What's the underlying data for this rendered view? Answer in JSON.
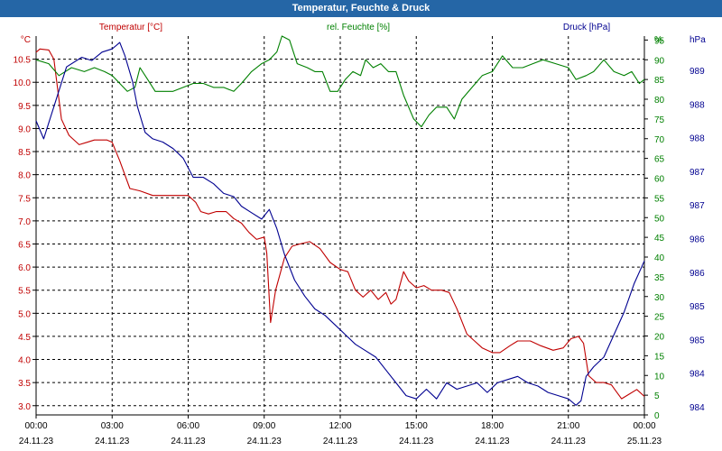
{
  "window": {
    "title": "Temperatur, Feuchte & Druck"
  },
  "colors": {
    "temperature": "#c00000",
    "humidity": "#008000",
    "pressure": "#000090",
    "grid": "#000000",
    "titlebar": "#2566a6"
  },
  "chart_data": {
    "type": "line",
    "title": "Temperatur, Feuchte & Druck",
    "legend_placement": "top",
    "grid": true,
    "grid_style": "dashed",
    "x_ticks": [
      {
        "time": "00:00",
        "date": "24.11.23",
        "h": 0
      },
      {
        "time": "03:00",
        "date": "24.11.23",
        "h": 3
      },
      {
        "time": "06:00",
        "date": "24.11.23",
        "h": 6
      },
      {
        "time": "09:00",
        "date": "24.11.23",
        "h": 9
      },
      {
        "time": "12:00",
        "date": "24.11.23",
        "h": 12
      },
      {
        "time": "15:00",
        "date": "24.11.23",
        "h": 15
      },
      {
        "time": "18:00",
        "date": "24.11.23",
        "h": 18
      },
      {
        "time": "21:00",
        "date": "24.11.23",
        "h": 21
      },
      {
        "time": "00:00",
        "date": "25.11.23",
        "h": 24
      }
    ],
    "axes": {
      "temperature": {
        "unit": "°C",
        "title": "Temperatur [°C]",
        "range": [
          2.8,
          11.0
        ],
        "ticks": [
          "3.0",
          "3.5",
          "4.0",
          "4.5",
          "5.0",
          "5.5",
          "6.0",
          "6.5",
          "7.0",
          "7.5",
          "8.0",
          "8.5",
          "9.0",
          "9.5",
          "10.0",
          "10.5"
        ]
      },
      "humidity": {
        "unit": "%",
        "title": "rel. Feuchte [%]",
        "range": [
          0,
          96
        ],
        "ticks": [
          "0",
          "5",
          "10",
          "15",
          "20",
          "25",
          "30",
          "35",
          "40",
          "45",
          "50",
          "55",
          "60",
          "65",
          "70",
          "75",
          "80",
          "85",
          "90",
          "95"
        ]
      },
      "pressure": {
        "unit": "hPa",
        "title": "Druck [hPa]",
        "range": [
          983.7,
          989.6
        ],
        "ticks": [
          "984",
          "984",
          "985",
          "985",
          "986",
          "986",
          "987",
          "987",
          "988",
          "988",
          "989"
        ]
      }
    },
    "series": [
      {
        "name": "Temperatur [°C]",
        "axis": "temperature",
        "color": "#c00000",
        "points": [
          [
            0,
            10.65
          ],
          [
            0.15,
            10.72
          ],
          [
            0.5,
            10.7
          ],
          [
            0.7,
            10.5
          ],
          [
            1.0,
            9.2
          ],
          [
            1.3,
            8.85
          ],
          [
            1.7,
            8.65
          ],
          [
            2.0,
            8.7
          ],
          [
            2.3,
            8.75
          ],
          [
            2.8,
            8.75
          ],
          [
            3.0,
            8.7
          ],
          [
            3.3,
            8.3
          ],
          [
            3.7,
            7.7
          ],
          [
            4.1,
            7.65
          ],
          [
            4.6,
            7.55
          ],
          [
            5.0,
            7.55
          ],
          [
            5.5,
            7.55
          ],
          [
            6.0,
            7.55
          ],
          [
            6.3,
            7.4
          ],
          [
            6.5,
            7.2
          ],
          [
            6.8,
            7.15
          ],
          [
            7.1,
            7.2
          ],
          [
            7.5,
            7.2
          ],
          [
            7.8,
            7.05
          ],
          [
            8.1,
            6.95
          ],
          [
            8.4,
            6.75
          ],
          [
            8.7,
            6.6
          ],
          [
            9.0,
            6.65
          ],
          [
            9.1,
            6.3
          ],
          [
            9.25,
            4.8
          ],
          [
            9.45,
            5.5
          ],
          [
            9.8,
            6.2
          ],
          [
            10.1,
            6.45
          ],
          [
            10.4,
            6.5
          ],
          [
            10.8,
            6.55
          ],
          [
            11.2,
            6.4
          ],
          [
            11.6,
            6.1
          ],
          [
            12.0,
            5.95
          ],
          [
            12.3,
            5.9
          ],
          [
            12.6,
            5.5
          ],
          [
            12.9,
            5.35
          ],
          [
            13.2,
            5.5
          ],
          [
            13.5,
            5.3
          ],
          [
            13.8,
            5.45
          ],
          [
            14.0,
            5.2
          ],
          [
            14.2,
            5.3
          ],
          [
            14.5,
            5.9
          ],
          [
            14.7,
            5.7
          ],
          [
            15.0,
            5.55
          ],
          [
            15.3,
            5.6
          ],
          [
            15.6,
            5.5
          ],
          [
            16.0,
            5.5
          ],
          [
            16.3,
            5.45
          ],
          [
            16.6,
            5.1
          ],
          [
            17.0,
            4.55
          ],
          [
            17.3,
            4.4
          ],
          [
            17.6,
            4.25
          ],
          [
            18.0,
            4.15
          ],
          [
            18.3,
            4.15
          ],
          [
            18.7,
            4.3
          ],
          [
            19.0,
            4.4
          ],
          [
            19.5,
            4.4
          ],
          [
            19.9,
            4.3
          ],
          [
            20.4,
            4.2
          ],
          [
            20.8,
            4.25
          ],
          [
            21.1,
            4.45
          ],
          [
            21.4,
            4.5
          ],
          [
            21.6,
            4.35
          ],
          [
            21.8,
            3.65
          ],
          [
            22.1,
            3.5
          ],
          [
            22.4,
            3.5
          ],
          [
            22.7,
            3.45
          ],
          [
            22.9,
            3.3
          ],
          [
            23.1,
            3.15
          ],
          [
            23.4,
            3.25
          ],
          [
            23.7,
            3.35
          ],
          [
            24.0,
            3.2
          ]
        ]
      },
      {
        "name": "rel. Feuchte [%]",
        "axis": "humidity",
        "color": "#008000",
        "points": [
          [
            0,
            90
          ],
          [
            0.5,
            89
          ],
          [
            0.9,
            86
          ],
          [
            1.4,
            88
          ],
          [
            1.9,
            87
          ],
          [
            2.3,
            88
          ],
          [
            2.7,
            87
          ],
          [
            3.0,
            86
          ],
          [
            3.3,
            84
          ],
          [
            3.6,
            82
          ],
          [
            3.9,
            83
          ],
          [
            4.1,
            88
          ],
          [
            4.4,
            85
          ],
          [
            4.7,
            82
          ],
          [
            5.0,
            82
          ],
          [
            5.4,
            82
          ],
          [
            5.8,
            83
          ],
          [
            6.2,
            84
          ],
          [
            6.6,
            84
          ],
          [
            7.0,
            83
          ],
          [
            7.4,
            83
          ],
          [
            7.8,
            82
          ],
          [
            8.1,
            84
          ],
          [
            8.5,
            87
          ],
          [
            8.9,
            89
          ],
          [
            9.2,
            90
          ],
          [
            9.5,
            92
          ],
          [
            9.7,
            96
          ],
          [
            10.0,
            95
          ],
          [
            10.3,
            89
          ],
          [
            10.7,
            88
          ],
          [
            11.0,
            87
          ],
          [
            11.3,
            87
          ],
          [
            11.6,
            82
          ],
          [
            11.9,
            82
          ],
          [
            12.2,
            85
          ],
          [
            12.5,
            87
          ],
          [
            12.8,
            86
          ],
          [
            13.0,
            90
          ],
          [
            13.3,
            88
          ],
          [
            13.6,
            89
          ],
          [
            13.9,
            87
          ],
          [
            14.2,
            87
          ],
          [
            14.5,
            81
          ],
          [
            14.9,
            75
          ],
          [
            15.2,
            73
          ],
          [
            15.5,
            76
          ],
          [
            15.8,
            78
          ],
          [
            16.2,
            78
          ],
          [
            16.5,
            75
          ],
          [
            16.8,
            80
          ],
          [
            17.2,
            83
          ],
          [
            17.6,
            86
          ],
          [
            18.0,
            87
          ],
          [
            18.4,
            91
          ],
          [
            18.8,
            88
          ],
          [
            19.2,
            88
          ],
          [
            19.6,
            89
          ],
          [
            20.0,
            90
          ],
          [
            20.5,
            89
          ],
          [
            21.0,
            88
          ],
          [
            21.3,
            85
          ],
          [
            21.7,
            86
          ],
          [
            22.0,
            87
          ],
          [
            22.4,
            90
          ],
          [
            22.8,
            87
          ],
          [
            23.2,
            86
          ],
          [
            23.5,
            87
          ],
          [
            23.8,
            84
          ],
          [
            24.0,
            85
          ]
        ]
      },
      {
        "name": "Druck [hPa]",
        "axis": "pressure",
        "color": "#000090",
        "points": [
          [
            0,
            988.28
          ],
          [
            0.3,
            988.0
          ],
          [
            0.7,
            988.5
          ],
          [
            1.2,
            989.12
          ],
          [
            1.8,
            989.27
          ],
          [
            2.2,
            989.22
          ],
          [
            2.6,
            989.35
          ],
          [
            3.0,
            989.4
          ],
          [
            3.3,
            989.5
          ],
          [
            3.5,
            989.3
          ],
          [
            3.8,
            988.9
          ],
          [
            4.0,
            988.5
          ],
          [
            4.3,
            988.1
          ],
          [
            4.6,
            988.0
          ],
          [
            5.0,
            987.95
          ],
          [
            5.4,
            987.85
          ],
          [
            5.8,
            987.7
          ],
          [
            6.2,
            987.4
          ],
          [
            6.6,
            987.4
          ],
          [
            7.0,
            987.3
          ],
          [
            7.4,
            987.15
          ],
          [
            7.8,
            987.1
          ],
          [
            8.1,
            986.95
          ],
          [
            8.5,
            986.85
          ],
          [
            8.9,
            986.75
          ],
          [
            9.2,
            986.9
          ],
          [
            9.5,
            986.6
          ],
          [
            9.8,
            986.2
          ],
          [
            10.2,
            985.8
          ],
          [
            10.6,
            985.55
          ],
          [
            11.0,
            985.35
          ],
          [
            11.4,
            985.25
          ],
          [
            11.8,
            985.1
          ],
          [
            12.2,
            984.95
          ],
          [
            12.6,
            984.8
          ],
          [
            13.0,
            984.7
          ],
          [
            13.4,
            984.6
          ],
          [
            13.8,
            984.4
          ],
          [
            14.2,
            984.2
          ],
          [
            14.6,
            984.0
          ],
          [
            15.0,
            983.95
          ],
          [
            15.4,
            984.1
          ],
          [
            15.8,
            983.95
          ],
          [
            16.2,
            984.2
          ],
          [
            16.6,
            984.1
          ],
          [
            17.0,
            984.15
          ],
          [
            17.4,
            984.2
          ],
          [
            17.8,
            984.05
          ],
          [
            18.2,
            984.2
          ],
          [
            18.6,
            984.25
          ],
          [
            19.0,
            984.3
          ],
          [
            19.4,
            984.2
          ],
          [
            19.8,
            984.15
          ],
          [
            20.2,
            984.05
          ],
          [
            20.6,
            984.0
          ],
          [
            21.0,
            983.95
          ],
          [
            21.3,
            983.85
          ],
          [
            21.5,
            983.92
          ],
          [
            21.7,
            984.3
          ],
          [
            22.0,
            984.45
          ],
          [
            22.4,
            984.6
          ],
          [
            22.8,
            984.95
          ],
          [
            23.2,
            985.3
          ],
          [
            23.6,
            985.75
          ],
          [
            24.0,
            986.1
          ]
        ]
      }
    ]
  }
}
